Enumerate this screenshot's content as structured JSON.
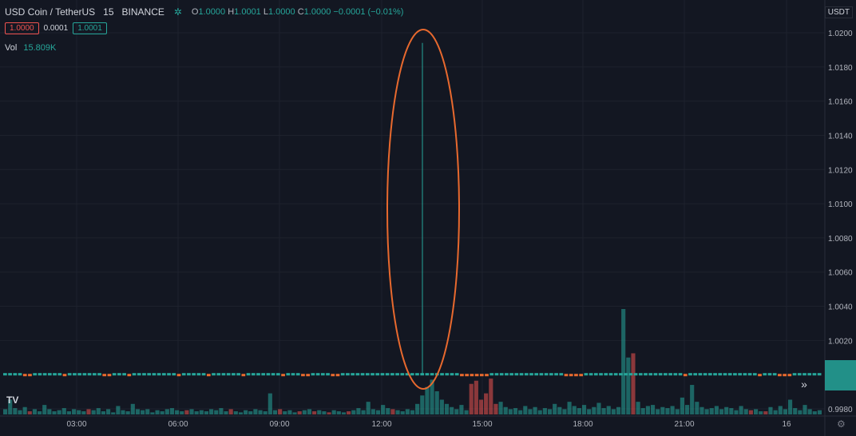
{
  "header": {
    "symbol": "USD Coin / TetherUS",
    "timeframe": "15",
    "exchange": "BINANCE",
    "open_label": "O",
    "open": "1.0000",
    "high_label": "H",
    "high": "1.0001",
    "low_label": "L",
    "low": "1.0000",
    "close_label": "C",
    "close": "1.0000",
    "change": "−0.0001 (−0.01%)"
  },
  "order_boxes": {
    "sell": "1.0000",
    "spread": "0.0001",
    "buy": "1.0001"
  },
  "volume": {
    "label": "Vol",
    "value": "15.809K"
  },
  "currency": "USDT",
  "colors": {
    "background": "#131722",
    "up": "#26a69a",
    "down": "#ef5350",
    "annotation": "#e8692e",
    "grid": "#1e222d",
    "text": "#b2b5be"
  },
  "icons": {
    "logo": "tradingview-logo-icon",
    "goto": "scroll-to-realtime-icon",
    "settings": "gear-icon"
  },
  "chart_data": {
    "type": "candlestick",
    "y_axis": {
      "ticks": [
        "1.0200",
        "1.0180",
        "1.0160",
        "1.0140",
        "1.0120",
        "1.0100",
        "1.0080",
        "1.0060",
        "1.0040",
        "1.0020",
        "0.9980"
      ],
      "range": [
        0.9978,
        1.021
      ]
    },
    "x_axis": {
      "ticks": [
        "03:00",
        "06:00",
        "09:00",
        "12:00",
        "15:00",
        "18:00",
        "21:00",
        "16"
      ]
    },
    "last_price": 1.0,
    "spike": {
      "time": "13:15",
      "open": 1.0,
      "high": 1.0194,
      "low": 1.0,
      "close": 1.0003
    },
    "volume_bars": [
      {
        "d": "up",
        "v": 5
      },
      {
        "d": "up",
        "v": 14
      },
      {
        "d": "up",
        "v": 6
      },
      {
        "d": "up",
        "v": 4
      },
      {
        "d": "up",
        "v": 7
      },
      {
        "d": "down",
        "v": 3
      },
      {
        "d": "up",
        "v": 5
      },
      {
        "d": "up",
        "v": 3
      },
      {
        "d": "up",
        "v": 9
      },
      {
        "d": "up",
        "v": 5
      },
      {
        "d": "up",
        "v": 3
      },
      {
        "d": "up",
        "v": 4
      },
      {
        "d": "up",
        "v": 6
      },
      {
        "d": "up",
        "v": 3
      },
      {
        "d": "up",
        "v": 5
      },
      {
        "d": "up",
        "v": 4
      },
      {
        "d": "up",
        "v": 3
      },
      {
        "d": "down",
        "v": 5
      },
      {
        "d": "up",
        "v": 4
      },
      {
        "d": "up",
        "v": 6
      },
      {
        "d": "up",
        "v": 3
      },
      {
        "d": "up",
        "v": 5
      },
      {
        "d": "up",
        "v": 2
      },
      {
        "d": "up",
        "v": 8
      },
      {
        "d": "up",
        "v": 4
      },
      {
        "d": "up",
        "v": 3
      },
      {
        "d": "up",
        "v": 10
      },
      {
        "d": "up",
        "v": 5
      },
      {
        "d": "up",
        "v": 4
      },
      {
        "d": "up",
        "v": 5
      },
      {
        "d": "up",
        "v": 2
      },
      {
        "d": "up",
        "v": 4
      },
      {
        "d": "up",
        "v": 3
      },
      {
        "d": "up",
        "v": 5
      },
      {
        "d": "up",
        "v": 6
      },
      {
        "d": "up",
        "v": 4
      },
      {
        "d": "up",
        "v": 3
      },
      {
        "d": "down",
        "v": 4
      },
      {
        "d": "up",
        "v": 5
      },
      {
        "d": "up",
        "v": 3
      },
      {
        "d": "up",
        "v": 4
      },
      {
        "d": "up",
        "v": 3
      },
      {
        "d": "up",
        "v": 5
      },
      {
        "d": "up",
        "v": 4
      },
      {
        "d": "up",
        "v": 6
      },
      {
        "d": "up",
        "v": 3
      },
      {
        "d": "down",
        "v": 5
      },
      {
        "d": "up",
        "v": 3
      },
      {
        "d": "up",
        "v": 2
      },
      {
        "d": "up",
        "v": 4
      },
      {
        "d": "up",
        "v": 3
      },
      {
        "d": "up",
        "v": 5
      },
      {
        "d": "up",
        "v": 4
      },
      {
        "d": "up",
        "v": 3
      },
      {
        "d": "up",
        "v": 20
      },
      {
        "d": "up",
        "v": 4
      },
      {
        "d": "down",
        "v": 5
      },
      {
        "d": "up",
        "v": 3
      },
      {
        "d": "up",
        "v": 4
      },
      {
        "d": "up",
        "v": 2
      },
      {
        "d": "down",
        "v": 3
      },
      {
        "d": "up",
        "v": 4
      },
      {
        "d": "up",
        "v": 5
      },
      {
        "d": "down",
        "v": 3
      },
      {
        "d": "up",
        "v": 4
      },
      {
        "d": "up",
        "v": 3
      },
      {
        "d": "down",
        "v": 2
      },
      {
        "d": "up",
        "v": 4
      },
      {
        "d": "up",
        "v": 3
      },
      {
        "d": "up",
        "v": 2
      },
      {
        "d": "down",
        "v": 3
      },
      {
        "d": "up",
        "v": 4
      },
      {
        "d": "up",
        "v": 6
      },
      {
        "d": "up",
        "v": 4
      },
      {
        "d": "up",
        "v": 12
      },
      {
        "d": "up",
        "v": 5
      },
      {
        "d": "up",
        "v": 4
      },
      {
        "d": "up",
        "v": 9
      },
      {
        "d": "up",
        "v": 6
      },
      {
        "d": "down",
        "v": 5
      },
      {
        "d": "up",
        "v": 4
      },
      {
        "d": "up",
        "v": 3
      },
      {
        "d": "up",
        "v": 5
      },
      {
        "d": "up",
        "v": 4
      },
      {
        "d": "up",
        "v": 10
      },
      {
        "d": "up",
        "v": 18
      },
      {
        "d": "up",
        "v": 26
      },
      {
        "d": "up",
        "v": 33
      },
      {
        "d": "up",
        "v": 22
      },
      {
        "d": "up",
        "v": 14
      },
      {
        "d": "up",
        "v": 10
      },
      {
        "d": "up",
        "v": 7
      },
      {
        "d": "up",
        "v": 5
      },
      {
        "d": "up",
        "v": 9
      },
      {
        "d": "up",
        "v": 4
      },
      {
        "d": "down",
        "v": 29
      },
      {
        "d": "down",
        "v": 32
      },
      {
        "d": "down",
        "v": 14
      },
      {
        "d": "down",
        "v": 20
      },
      {
        "d": "down",
        "v": 34
      },
      {
        "d": "down",
        "v": 10
      },
      {
        "d": "up",
        "v": 12
      },
      {
        "d": "up",
        "v": 7
      },
      {
        "d": "up",
        "v": 5
      },
      {
        "d": "up",
        "v": 6
      },
      {
        "d": "up",
        "v": 4
      },
      {
        "d": "up",
        "v": 8
      },
      {
        "d": "up",
        "v": 5
      },
      {
        "d": "up",
        "v": 7
      },
      {
        "d": "up",
        "v": 4
      },
      {
        "d": "up",
        "v": 6
      },
      {
        "d": "up",
        "v": 5
      },
      {
        "d": "up",
        "v": 10
      },
      {
        "d": "up",
        "v": 7
      },
      {
        "d": "up",
        "v": 5
      },
      {
        "d": "up",
        "v": 12
      },
      {
        "d": "up",
        "v": 8
      },
      {
        "d": "up",
        "v": 6
      },
      {
        "d": "up",
        "v": 9
      },
      {
        "d": "up",
        "v": 5
      },
      {
        "d": "up",
        "v": 7
      },
      {
        "d": "up",
        "v": 11
      },
      {
        "d": "up",
        "v": 6
      },
      {
        "d": "up",
        "v": 8
      },
      {
        "d": "up",
        "v": 5
      },
      {
        "d": "up",
        "v": 7
      },
      {
        "d": "up",
        "v": 100
      },
      {
        "d": "up",
        "v": 54
      },
      {
        "d": "down",
        "v": 58
      },
      {
        "d": "up",
        "v": 12
      },
      {
        "d": "up",
        "v": 6
      },
      {
        "d": "up",
        "v": 8
      },
      {
        "d": "up",
        "v": 9
      },
      {
        "d": "up",
        "v": 5
      },
      {
        "d": "up",
        "v": 7
      },
      {
        "d": "up",
        "v": 6
      },
      {
        "d": "up",
        "v": 8
      },
      {
        "d": "up",
        "v": 5
      },
      {
        "d": "up",
        "v": 16
      },
      {
        "d": "up",
        "v": 9
      },
      {
        "d": "up",
        "v": 28
      },
      {
        "d": "up",
        "v": 12
      },
      {
        "d": "up",
        "v": 7
      },
      {
        "d": "up",
        "v": 5
      },
      {
        "d": "up",
        "v": 6
      },
      {
        "d": "up",
        "v": 8
      },
      {
        "d": "up",
        "v": 5
      },
      {
        "d": "up",
        "v": 7
      },
      {
        "d": "up",
        "v": 6
      },
      {
        "d": "up",
        "v": 4
      },
      {
        "d": "up",
        "v": 8
      },
      {
        "d": "up",
        "v": 5
      },
      {
        "d": "down",
        "v": 4
      },
      {
        "d": "up",
        "v": 5
      },
      {
        "d": "up",
        "v": 3
      },
      {
        "d": "down",
        "v": 3
      },
      {
        "d": "up",
        "v": 7
      },
      {
        "d": "up",
        "v": 4
      },
      {
        "d": "up",
        "v": 8
      },
      {
        "d": "up",
        "v": 5
      },
      {
        "d": "up",
        "v": 14
      },
      {
        "d": "up",
        "v": 6
      },
      {
        "d": "up",
        "v": 4
      },
      {
        "d": "up",
        "v": 9
      },
      {
        "d": "up",
        "v": 5
      },
      {
        "d": "up",
        "v": 3
      },
      {
        "d": "up",
        "v": 4
      }
    ],
    "candle_dirs": "uuuudduuuuuuduuuuuuudduuuduuuuuuuuuduuuuuduuuuuuduuuuuuuduuudduuuudduuuuuuuuuuuuuuuuuuuuuuuudddddduuuuuuuuuuuuuuudddduuuuuuuuuuuuuuuuuuuuduuuuuuuuuuuuuuduuuddduuuuuu"
  }
}
